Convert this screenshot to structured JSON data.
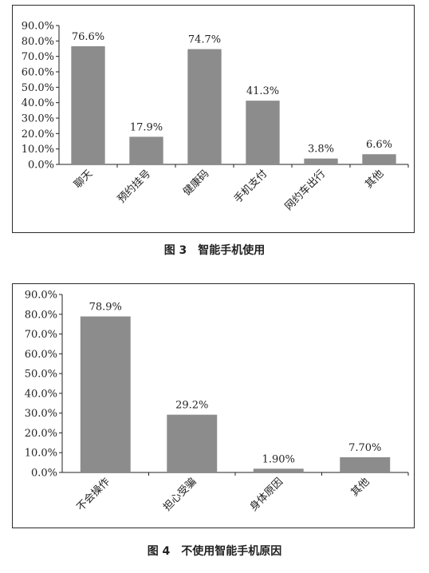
{
  "figure3": {
    "caption": "图 3　智能手机使用",
    "chart_data": {
      "type": "bar",
      "categories": [
        "聊天",
        "预约挂号",
        "健康码",
        "手机支付",
        "网约车出行",
        "其他"
      ],
      "values": [
        76.6,
        17.9,
        74.7,
        41.3,
        3.8,
        6.6
      ],
      "data_labels": [
        "76.6%",
        "17.9%",
        "74.7%",
        "41.3%",
        "3.8%",
        "6.6%"
      ],
      "yticks": [
        "0.0%",
        "10.0%",
        "20.0%",
        "30.0%",
        "40.0%",
        "50.0%",
        "60.0%",
        "70.0%",
        "80.0%",
        "90.0%"
      ],
      "ylim": [
        0,
        90
      ],
      "bar_color": "#8c8c8c",
      "grid": false
    }
  },
  "figure4": {
    "caption": "图 4　不使用智能手机原因",
    "chart_data": {
      "type": "bar",
      "categories": [
        "不会操作",
        "担心受骗",
        "身体原因",
        "其他"
      ],
      "values": [
        78.9,
        29.2,
        1.9,
        7.7
      ],
      "data_labels": [
        "78.9%",
        "29.2%",
        "1.90%",
        "7.70%"
      ],
      "yticks": [
        "0.0%",
        "10.0%",
        "20.0%",
        "30.0%",
        "40.0%",
        "50.0%",
        "60.0%",
        "70.0%",
        "80.0%",
        "90.0%"
      ],
      "ylim": [
        0,
        90
      ],
      "bar_color": "#8c8c8c",
      "grid": false
    }
  }
}
